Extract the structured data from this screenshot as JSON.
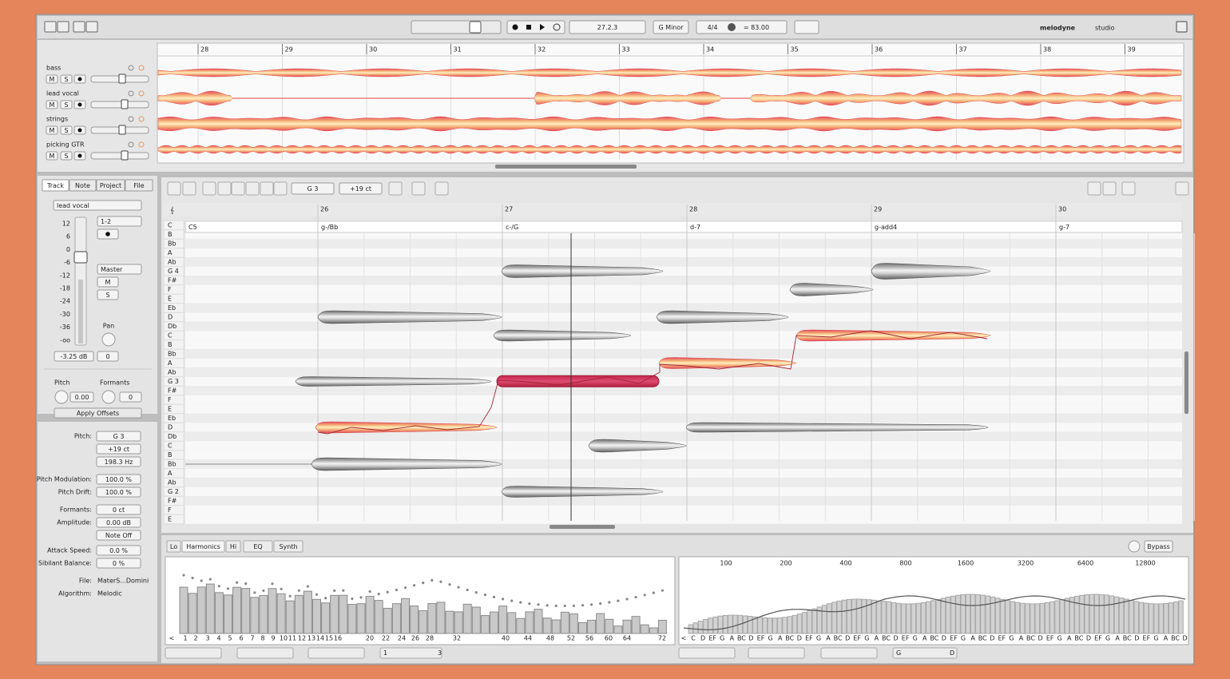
{
  "toolbar": {
    "position": "27.2.3",
    "key": "G Minor",
    "meter": "4/4",
    "tempo": "= 83.00",
    "logo": "melodyne",
    "logo_suffix": "studio"
  },
  "arrangement": {
    "bars": [
      "28",
      "29",
      "30",
      "31",
      "32",
      "33",
      "34",
      "35",
      "36",
      "37",
      "38",
      "39"
    ],
    "tracks": [
      {
        "name": "bass",
        "mute": "M",
        "solo": "S"
      },
      {
        "name": "lead vocal",
        "mute": "M",
        "solo": "S"
      },
      {
        "name": "strings",
        "mute": "M",
        "solo": "S"
      },
      {
        "name": "picking GTR",
        "mute": "M",
        "solo": "S"
      }
    ]
  },
  "inspector": {
    "tabs": [
      "Track",
      "Note",
      "Project",
      "File"
    ],
    "track_name": "lead vocal",
    "fader_scale": [
      "12",
      "6",
      "0",
      "-6",
      "-12",
      "-18",
      "-24",
      "-30",
      "-36",
      "-oo"
    ],
    "channel": "1-2",
    "output": "Master",
    "mute": "M",
    "solo": "S",
    "pan_label": "Pan",
    "volume": "-3.25 dB",
    "pan": "0",
    "pitch_label": "Pitch",
    "formants_label": "Formants",
    "pitch": "0.00",
    "formants": "0",
    "apply": "Apply Offsets"
  },
  "note_params": [
    {
      "label": "Pitch:",
      "values": [
        "G 3",
        "+19 ct",
        "198.3 Hz"
      ]
    },
    {
      "label": "Pitch Modulation:",
      "values": [
        "100.0 %"
      ]
    },
    {
      "label": "Pitch Drift:",
      "values": [
        "100.0 %"
      ]
    },
    {
      "label": "Formants:",
      "values": [
        "0 ct"
      ]
    },
    {
      "label": "Amplitude:",
      "values": [
        "0.00 dB",
        "Note Off"
      ]
    },
    {
      "label": "Attack Speed:",
      "values": [
        "0.0 %"
      ]
    },
    {
      "label": "Sibilant Balance:",
      "values": [
        "0 %"
      ]
    },
    {
      "label": "File:",
      "values": [
        "MaterS...Domini"
      ]
    },
    {
      "label": "Algorithm:",
      "values": [
        "Melodic"
      ]
    }
  ],
  "editor": {
    "pitch": "G 3",
    "cents": "+19 ct",
    "bars": [
      "26",
      "27",
      "28",
      "29",
      "30"
    ],
    "chords": [
      "C5",
      "g-/Bb",
      "c-/G",
      "d-7",
      "g-add4",
      "g-7"
    ],
    "keys": [
      "C",
      "B",
      "Bb",
      "A",
      "Ab",
      "G 4",
      "F#",
      "F",
      "E",
      "Eb",
      "D",
      "Db",
      "C",
      "B",
      "Bb",
      "A",
      "Ab",
      "G 3",
      "F#",
      "F",
      "E",
      "Eb",
      "D",
      "Db",
      "C",
      "B",
      "Bb",
      "A",
      "Ab",
      "G 2",
      "F#",
      "F",
      "E"
    ]
  },
  "sound_editor": {
    "tabs": [
      "Lo",
      "Harmonics",
      "Hi",
      "EQ",
      "Synth"
    ],
    "bypass": "Bypass",
    "harmonics": [
      "<",
      "1",
      "2",
      "3",
      "4",
      "5",
      "6",
      "7",
      "8",
      "9",
      "10",
      "11",
      "12",
      "13",
      "14",
      "15",
      "16",
      "20",
      "22",
      "24",
      "26",
      "28",
      "32",
      "40",
      "44",
      "48",
      "52",
      "56",
      "60",
      "64",
      "72"
    ],
    "frequencies": [
      "100",
      "200",
      "400",
      "800",
      "1600",
      "3200",
      "6400",
      "12800"
    ],
    "notes": [
      "<",
      "C",
      "D",
      "EF",
      "G",
      "A",
      "BC",
      "D",
      "EF",
      "G",
      "A",
      "BC",
      "D",
      "EF",
      "G",
      "A",
      "BC",
      "D",
      "EF",
      "G",
      "A",
      "BC",
      "D",
      "EF",
      "G",
      "A",
      "BC",
      "D",
      "EF",
      "G",
      "A",
      "BC",
      "D",
      "EF",
      "G",
      "A",
      "BC",
      "D",
      "EF",
      "G",
      "A",
      "BC",
      "D",
      "EF",
      "G",
      "A",
      "BC",
      "D",
      "EF",
      "G",
      "A",
      "BC",
      "D"
    ],
    "left_range": [
      "1",
      "3"
    ],
    "right_range": [
      "G",
      "D"
    ]
  }
}
